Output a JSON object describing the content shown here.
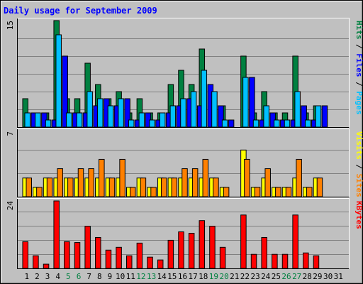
{
  "chart_data": [
    {
      "type": "bar",
      "title": "Daily usage for September 2009",
      "categories": [
        "1",
        "2",
        "3",
        "4",
        "5",
        "6",
        "7",
        "8",
        "9",
        "10",
        "11",
        "12",
        "13",
        "14",
        "15",
        "16",
        "17",
        "18",
        "19",
        "20",
        "21",
        "22",
        "23",
        "24",
        "25",
        "26",
        "27",
        "28",
        "29",
        "30",
        "31"
      ],
      "weekend_days": [
        5,
        6,
        12,
        13,
        19,
        20,
        26,
        27
      ],
      "ylim": [
        0,
        15
      ],
      "ytick": "15",
      "legend": [
        {
          "label": "Pages",
          "color": "#00c0ff"
        },
        {
          "label": "Files",
          "color": "#0000ff"
        },
        {
          "label": "Hits",
          "color": "#008040"
        }
      ],
      "series": [
        {
          "name": "Hits",
          "color": "#008040",
          "values": [
            4,
            2,
            2,
            15,
            4,
            4,
            9,
            6,
            4,
            5,
            2,
            4,
            2,
            2,
            6,
            8,
            6,
            11,
            5,
            3,
            0,
            10,
            2,
            5,
            2,
            2,
            10,
            2,
            3,
            0,
            0
          ]
        },
        {
          "name": "Files",
          "color": "#0000ff",
          "values": [
            2,
            2,
            1,
            10,
            2,
            2,
            3,
            4,
            3,
            4,
            1,
            2,
            1,
            2,
            3,
            4,
            3,
            6,
            3,
            1,
            0,
            7,
            1,
            2,
            1,
            1,
            3,
            1,
            3,
            0,
            0
          ]
        },
        {
          "name": "Pages",
          "color": "#00c0ff",
          "values": [
            2,
            2,
            1,
            13,
            2,
            2,
            5,
            4,
            3,
            4,
            1,
            2,
            1,
            2,
            3,
            4,
            5,
            8,
            5,
            1,
            0,
            7,
            1,
            3,
            1,
            1,
            5,
            1,
            3,
            0,
            0
          ]
        }
      ]
    },
    {
      "type": "bar",
      "ylim": [
        0,
        7
      ],
      "ytick": "7",
      "legend": [
        {
          "label": "Sites",
          "color": "#ff8000"
        },
        {
          "label": "Visits",
          "color": "#ffff00"
        }
      ],
      "series": [
        {
          "name": "Visits",
          "color": "#ffff00",
          "values": [
            2,
            1,
            2,
            2,
            2,
            2,
            2,
            2,
            2,
            2,
            1,
            2,
            1,
            2,
            2,
            2,
            2,
            2,
            2,
            1,
            0,
            5,
            1,
            2,
            1,
            1,
            2,
            1,
            2,
            0,
            0
          ]
        },
        {
          "name": "Sites",
          "color": "#ff8000",
          "values": [
            2,
            1,
            2,
            3,
            2,
            3,
            3,
            4,
            2,
            4,
            1,
            2,
            1,
            2,
            2,
            3,
            3,
            4,
            2,
            1,
            0,
            4,
            1,
            3,
            1,
            1,
            4,
            1,
            2,
            0,
            0
          ]
        }
      ]
    },
    {
      "type": "bar",
      "ylim": [
        0,
        24
      ],
      "ytick": "24",
      "legend": [
        {
          "label": "KBytes",
          "color": "#ff0000"
        }
      ],
      "series": [
        {
          "name": "KBytes",
          "color": "#ff0000",
          "values": [
            9.5,
            4.5,
            1.5,
            24,
            9.5,
            9.2,
            15,
            11,
            6.5,
            7.5,
            4.5,
            9,
            4,
            3,
            10,
            13,
            12.5,
            17,
            15,
            7.5,
            0,
            19,
            5,
            11,
            5,
            5,
            19,
            5.5,
            4.5,
            0,
            0
          ]
        }
      ]
    }
  ]
}
